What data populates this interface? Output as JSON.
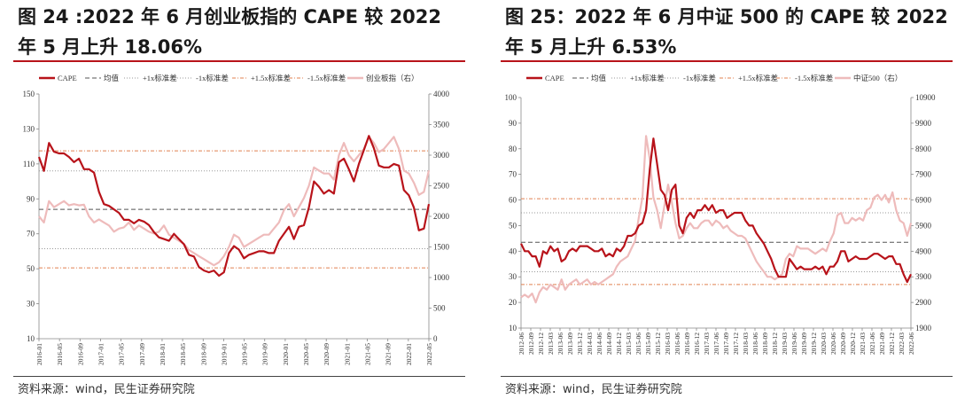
{
  "charts": [
    {
      "id": "left",
      "title": "图 24 :2022 年 6 月创业板指的 CAPE 较 2022 年 5 月上升 18.06%",
      "source": "资料来源：wind，民生证券研究院",
      "legend": {
        "cape": "CAPE",
        "mean": "均值",
        "plus1": "+1x标准差",
        "minus1": "-1x标准差",
        "plus15": "+1.5x标准差",
        "minus15": "-1.5x标准差",
        "index": "创业板指（右）"
      },
      "colors": {
        "cape": "#b8131a",
        "index": "#eebbbb",
        "mean": "#555555",
        "band1": "#999999",
        "band15": "#e08050"
      },
      "mean_line_style": "dashed",
      "band_line_style": "dotted"
    },
    {
      "id": "right",
      "title": "图 25：2022 年 6 月中证 500 的 CAPE 较 2022 年 5 月上升 6.53%",
      "source": "资料来源：wind，民生证券研究院",
      "legend": {
        "cape": "CAPE",
        "mean": "均值",
        "plus1": "+1x标准差",
        "minus1": "-1x标准差",
        "plus15": "+1.5x标准差",
        "minus15": "-1.5x标准差",
        "index": "中证500（右）"
      },
      "colors": {
        "cape": "#b8131a",
        "index": "#eebbbb",
        "mean": "#555555",
        "band1": "#999999",
        "band15": "#e08050"
      },
      "mean_line_style": "dashed",
      "band_line_style": "dotted"
    }
  ],
  "chart_data": [
    {
      "type": "line",
      "x_ticks": [
        "2016-01",
        "2016-05",
        "2016-09",
        "2017-01",
        "2017-05",
        "2017-09",
        "2018-01",
        "2018-05",
        "2018-09",
        "2019-01",
        "2019-05",
        "2019-09",
        "2020-01",
        "2020-05",
        "2020-09",
        "2021-01",
        "2021-05",
        "2021-09",
        "2022-01",
        "2022-05"
      ],
      "y_left": {
        "min": 10,
        "max": 150,
        "ticks": [
          10,
          30,
          50,
          70,
          90,
          110,
          130,
          150
        ]
      },
      "y_right": {
        "min": 0,
        "max": 4000,
        "ticks": [
          0,
          500,
          1000,
          1500,
          2000,
          2500,
          3000,
          3500,
          4000
        ]
      },
      "reference_lines": {
        "mean": 84,
        "plus1": 106,
        "minus1": 61.5,
        "plus15": 117.5,
        "minus15": 50.5
      },
      "series": [
        {
          "name": "CAPE",
          "axis": "left",
          "values": [
            114,
            106,
            122,
            117,
            116,
            116,
            114,
            111,
            113,
            107,
            107,
            105,
            94,
            87,
            86,
            84,
            82,
            78,
            78,
            76,
            78,
            77,
            75,
            71,
            68,
            67,
            66,
            70,
            67,
            64,
            58,
            57,
            51,
            49,
            48,
            49,
            46,
            48,
            59,
            63,
            61,
            56,
            58,
            59,
            60,
            60,
            59,
            59,
            66,
            70,
            74,
            67,
            74,
            75,
            85,
            100,
            97,
            93,
            95,
            93,
            111,
            113,
            107,
            100,
            110,
            118,
            126,
            119,
            109,
            108,
            108,
            110,
            109,
            95,
            92,
            85,
            72,
            73,
            87
          ],
          "color": "#b8131a"
        },
        {
          "name": "创业板指（右）",
          "axis": "right",
          "values": [
            2000,
            1900,
            2250,
            2150,
            2200,
            2250,
            2180,
            2200,
            2180,
            2190,
            2000,
            1900,
            1950,
            1900,
            1850,
            1750,
            1800,
            1820,
            1900,
            1780,
            1850,
            1800,
            1750,
            1720,
            1750,
            1850,
            1700,
            1650,
            1600,
            1550,
            1450,
            1400,
            1350,
            1300,
            1250,
            1200,
            1250,
            1350,
            1500,
            1700,
            1650,
            1500,
            1550,
            1600,
            1650,
            1700,
            1700,
            1800,
            1900,
            2100,
            2200,
            2000,
            2150,
            2300,
            2500,
            2800,
            2750,
            2700,
            2700,
            2600,
            3000,
            3200,
            3000,
            2900,
            3000,
            3100,
            3300,
            3200,
            3050,
            3100,
            3200,
            3300,
            3100,
            2750,
            2700,
            2550,
            2350,
            2400,
            2750
          ],
          "color": "#eebbbb"
        }
      ]
    },
    {
      "type": "line",
      "x_ticks": [
        "2012-06",
        "2012-09",
        "2012-12",
        "2013-03",
        "2013-06",
        "2013-09",
        "2013-12",
        "2014-03",
        "2014-06",
        "2014-09",
        "2014-12",
        "2015-03",
        "2015-06",
        "2015-09",
        "2015-12",
        "2016-03",
        "2016-06",
        "2016-09",
        "2016-12",
        "2017-03",
        "2017-06",
        "2017-09",
        "2017-12",
        "2018-03",
        "2018-06",
        "2018-09",
        "2018-12",
        "2019-03",
        "2019-06",
        "2019-09",
        "2019-12",
        "2020-03",
        "2020-06",
        "2020-09",
        "2020-12",
        "2021-03",
        "2021-06",
        "2021-09",
        "2021-12",
        "2022-03",
        "2022-06"
      ],
      "y_left": {
        "min": 10,
        "max": 100,
        "ticks": [
          10,
          20,
          30,
          40,
          50,
          60,
          70,
          80,
          90,
          100
        ]
      },
      "y_right": {
        "min": 1900,
        "max": 10900,
        "ticks": [
          1900,
          2900,
          3900,
          4900,
          5900,
          6900,
          7900,
          8900,
          9900,
          10900
        ]
      },
      "reference_lines": {
        "mean": 43.5,
        "plus1": 55,
        "minus1": 32,
        "plus15": 60.5,
        "minus15": 27
      },
      "series": [
        {
          "name": "CAPE",
          "axis": "left",
          "values": [
            43,
            40,
            40,
            38,
            38,
            34,
            40,
            39,
            42,
            40,
            41,
            36,
            37,
            40,
            41,
            40,
            42,
            42,
            42,
            41,
            40,
            40,
            41,
            38,
            39,
            38,
            41,
            40,
            42,
            46,
            46,
            47,
            50,
            51,
            56,
            72,
            84,
            74,
            64,
            62,
            56,
            64,
            66,
            50,
            47,
            53,
            55,
            53,
            56,
            56,
            58,
            56,
            58,
            55,
            56,
            56,
            53,
            54,
            55,
            55,
            55,
            52,
            50,
            50,
            47,
            45,
            43,
            40,
            37,
            33,
            30,
            30,
            30,
            37,
            35,
            33,
            34,
            33,
            33,
            33,
            34,
            33,
            34,
            31,
            34,
            34,
            36,
            40,
            40,
            36,
            37,
            38,
            37,
            37,
            37,
            38,
            39,
            39,
            38,
            37,
            38,
            38,
            35,
            35,
            31,
            28,
            31
          ],
          "color": "#b8131a"
        },
        {
          "name": "中证500（右）",
          "axis": "right",
          "values": [
            3100,
            3200,
            3100,
            3250,
            2900,
            3300,
            3500,
            3400,
            3600,
            3500,
            3400,
            3800,
            3400,
            3600,
            3700,
            3800,
            3600,
            3700,
            3800,
            3600,
            3700,
            3600,
            3700,
            3800,
            3900,
            4000,
            4300,
            4500,
            4600,
            4700,
            5000,
            5300,
            6200,
            7000,
            9400,
            8500,
            7000,
            6500,
            5800,
            6700,
            7500,
            6800,
            6000,
            5400,
            5500,
            5800,
            6000,
            5800,
            5800,
            6000,
            6100,
            6100,
            5900,
            6100,
            6000,
            5800,
            5900,
            5700,
            5600,
            5500,
            5500,
            5400,
            5100,
            4800,
            4500,
            4300,
            4100,
            3900,
            3900,
            3800,
            3900,
            4000,
            4600,
            4800,
            4700,
            5100,
            5000,
            5000,
            5000,
            4900,
            4800,
            4900,
            5000,
            4900,
            5300,
            5600,
            6300,
            6400,
            6000,
            6000,
            6200,
            6100,
            6200,
            6100,
            6500,
            6600,
            7000,
            7100,
            6900,
            7100,
            6800,
            7200,
            6500,
            6100,
            6000,
            5500,
            6000
          ],
          "color": "#eebbbb"
        }
      ]
    }
  ]
}
